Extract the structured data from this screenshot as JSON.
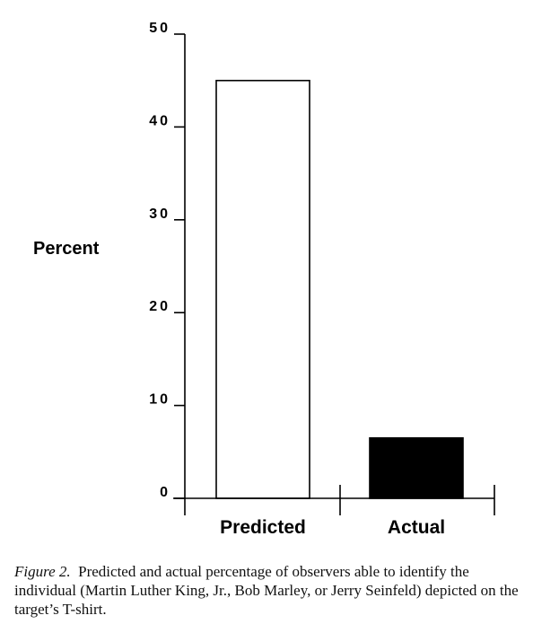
{
  "chart_data": {
    "type": "bar",
    "categories": [
      "Predicted",
      "Actual"
    ],
    "values": [
      45,
      6.5
    ],
    "bar_colors": [
      "#ffffff",
      "#000000"
    ],
    "title": "",
    "xlabel": "",
    "ylabel": "Percent",
    "ylim": [
      0,
      50
    ],
    "yticks": [
      0,
      10,
      20,
      30,
      40,
      50
    ],
    "ytick_labels": [
      "0",
      "10",
      "20",
      "30",
      "40",
      "50"
    ],
    "grid": false
  },
  "caption": {
    "label": "Figure 2.",
    "text": "Predicted and actual percentage of observers able to identify the individual (Martin Luther King, Jr., Bob Marley, or Jerry Seinfeld) depicted on the target’s T-shirt."
  }
}
